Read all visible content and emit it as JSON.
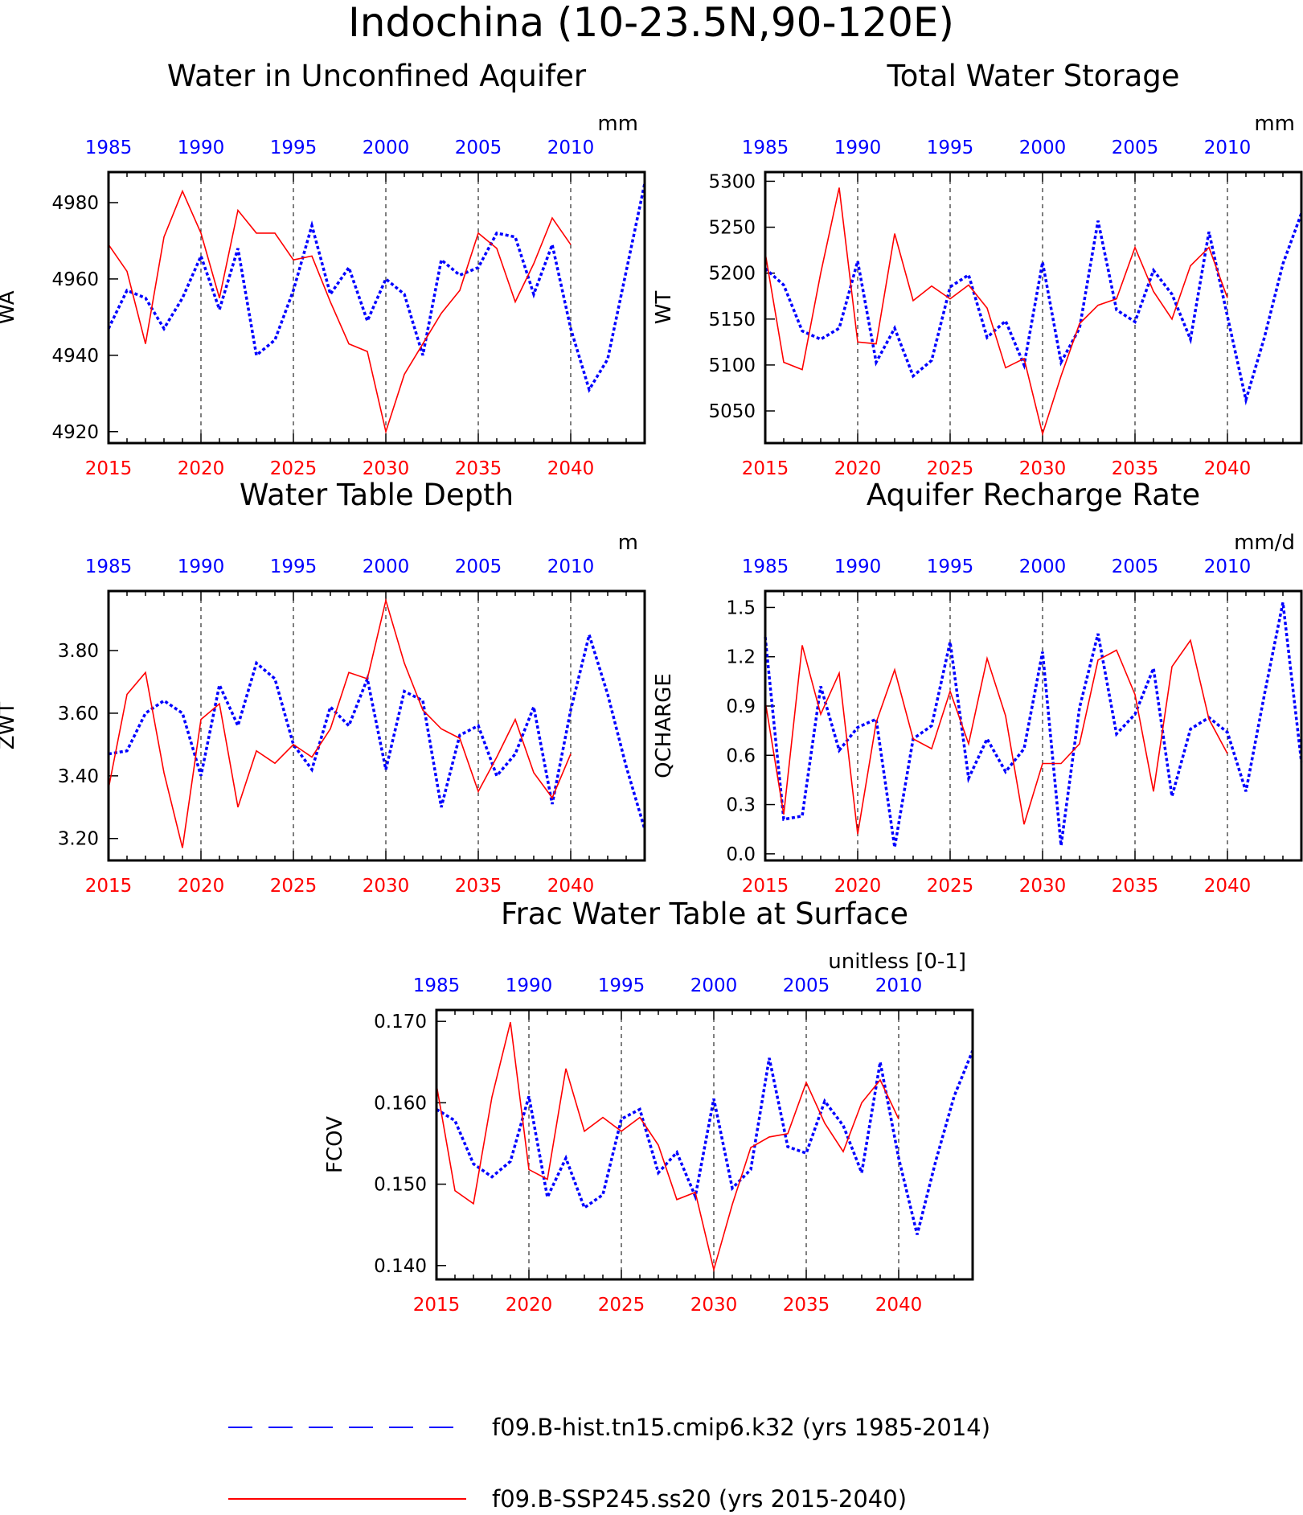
{
  "page_title": "Indochina (10-23.5N,90-120E)",
  "legend": [
    {
      "label": "f09.B-hist.tn15.cmip6.k32 (yrs 1985-2014)",
      "color": "#0000ff",
      "style": "dashed"
    },
    {
      "label": "f09.B-SSP245.ss20 (yrs 2015-2040)",
      "color": "#ff0000",
      "style": "solid"
    }
  ],
  "colors": {
    "hist": "#0000ff",
    "ssp": "#ff0000",
    "axis": "#000000"
  },
  "chart_data": [
    {
      "type": "line",
      "title": "Water in Unconfined Aquifer",
      "ylabel": "WA",
      "units": "mm",
      "x_top_ticks": [
        "1985",
        "1990",
        "1995",
        "2000",
        "2005",
        "2010"
      ],
      "x_bottom_ticks": [
        "2015",
        "2020",
        "2025",
        "2030",
        "2035",
        "2040"
      ],
      "xlim_bottom": [
        2015,
        2044
      ],
      "ylim": [
        4917,
        4988
      ],
      "yticks": [
        4920,
        4940,
        4960,
        4980
      ],
      "ytick_labels": [
        "4920",
        "4940",
        "4960",
        "4980"
      ],
      "series": [
        {
          "name": "f09.B-hist.tn15.cmip6.k32",
          "x_start": 1985,
          "values": [
            4947,
            4957,
            4955,
            4947,
            4955,
            4966,
            4952,
            4968,
            4940,
            4944,
            4957,
            4974,
            4956,
            4963,
            4949,
            4960,
            4956,
            4940,
            4965,
            4961,
            4963,
            4972,
            4971,
            4956,
            4969,
            4947,
            4931,
            4939,
            4962,
            4985
          ]
        },
        {
          "name": "f09.B-SSP245.ss20",
          "x_start": 2015,
          "values": [
            4969,
            4962,
            4943,
            4971,
            4983,
            4972,
            4955,
            4978,
            4972,
            4972,
            4965,
            4966,
            4954,
            4943,
            4941,
            4920,
            4935,
            4943,
            4951,
            4957,
            4972,
            4968,
            4954,
            4964,
            4976,
            4969
          ]
        }
      ]
    },
    {
      "type": "line",
      "title": "Total Water Storage",
      "ylabel": "WT",
      "units": "mm",
      "x_top_ticks": [
        "1985",
        "1990",
        "1995",
        "2000",
        "2005",
        "2010"
      ],
      "x_bottom_ticks": [
        "2015",
        "2020",
        "2025",
        "2030",
        "2035",
        "2040"
      ],
      "xlim_bottom": [
        2015,
        2044
      ],
      "ylim": [
        5015,
        5310
      ],
      "yticks": [
        5050,
        5100,
        5150,
        5200,
        5250,
        5300
      ],
      "ytick_labels": [
        "5050",
        "5100",
        "5150",
        "5200",
        "5250",
        "5300"
      ],
      "series": [
        {
          "name": "f09.B-hist.tn15.cmip6.k32",
          "x_start": 1985,
          "values": [
            5205,
            5187,
            5137,
            5128,
            5140,
            5213,
            5103,
            5140,
            5088,
            5105,
            5185,
            5198,
            5130,
            5148,
            5100,
            5212,
            5103,
            5140,
            5257,
            5160,
            5147,
            5203,
            5177,
            5128,
            5245,
            5153,
            5062,
            5130,
            5210,
            5265
          ]
        },
        {
          "name": "f09.B-SSP245.ss20",
          "x_start": 2015,
          "values": [
            5222,
            5103,
            5095,
            5200,
            5293,
            5125,
            5123,
            5243,
            5170,
            5186,
            5172,
            5187,
            5162,
            5097,
            5107,
            5025,
            5088,
            5145,
            5165,
            5172,
            5228,
            5180,
            5150,
            5208,
            5228,
            5173
          ]
        }
      ]
    },
    {
      "type": "line",
      "title": "Water Table Depth",
      "ylabel": "ZWT",
      "units": "m",
      "x_top_ticks": [
        "1985",
        "1990",
        "1995",
        "2000",
        "2005",
        "2010"
      ],
      "x_bottom_ticks": [
        "2015",
        "2020",
        "2025",
        "2030",
        "2035",
        "2040"
      ],
      "xlim_bottom": [
        2015,
        2044
      ],
      "ylim": [
        3.13,
        3.99
      ],
      "yticks": [
        3.2,
        3.4,
        3.6,
        3.8
      ],
      "ytick_labels": [
        "3.20",
        "3.40",
        "3.60",
        "3.80"
      ],
      "series": [
        {
          "name": "f09.B-hist.tn15.cmip6.k32",
          "x_start": 1985,
          "values": [
            3.47,
            3.48,
            3.6,
            3.64,
            3.6,
            3.4,
            3.69,
            3.56,
            3.76,
            3.71,
            3.5,
            3.42,
            3.62,
            3.56,
            3.71,
            3.42,
            3.67,
            3.64,
            3.3,
            3.53,
            3.56,
            3.4,
            3.47,
            3.62,
            3.31,
            3.61,
            3.85,
            3.66,
            3.43,
            3.23
          ]
        },
        {
          "name": "f09.B-SSP245.ss20",
          "x_start": 2015,
          "values": [
            3.36,
            3.66,
            3.73,
            3.41,
            3.17,
            3.58,
            3.63,
            3.3,
            3.48,
            3.44,
            3.5,
            3.46,
            3.55,
            3.73,
            3.71,
            3.96,
            3.76,
            3.61,
            3.55,
            3.52,
            3.35,
            3.46,
            3.58,
            3.41,
            3.33,
            3.47
          ]
        }
      ]
    },
    {
      "type": "line",
      "title": "Aquifer Recharge Rate",
      "ylabel": "QCHARGE",
      "units": "mm/d",
      "x_top_ticks": [
        "1985",
        "1990",
        "1995",
        "2000",
        "2005",
        "2010"
      ],
      "x_bottom_ticks": [
        "2015",
        "2020",
        "2025",
        "2030",
        "2035",
        "2040"
      ],
      "xlim_bottom": [
        2015,
        2044
      ],
      "ylim": [
        -0.04,
        1.6
      ],
      "yticks": [
        0.0,
        0.3,
        0.6,
        0.9,
        1.2,
        1.5
      ],
      "ytick_labels": [
        "0.0",
        "0.3",
        "0.6",
        "0.9",
        "1.2",
        "1.5"
      ],
      "series": [
        {
          "name": "f09.B-hist.tn15.cmip6.k32",
          "x_start": 1985,
          "values": [
            1.32,
            0.21,
            0.23,
            1.02,
            0.63,
            0.77,
            0.82,
            0.04,
            0.7,
            0.78,
            1.29,
            0.46,
            0.7,
            0.5,
            0.64,
            1.23,
            0.05,
            0.89,
            1.34,
            0.73,
            0.85,
            1.13,
            0.35,
            0.76,
            0.83,
            0.74,
            0.38,
            0.97,
            1.53,
            0.56
          ]
        },
        {
          "name": "f09.B-SSP245.ss20",
          "x_start": 2015,
          "values": [
            0.93,
            0.24,
            1.27,
            0.85,
            1.1,
            0.12,
            0.8,
            1.12,
            0.7,
            0.64,
            0.99,
            0.67,
            1.19,
            0.84,
            0.18,
            0.55,
            0.55,
            0.67,
            1.18,
            1.24,
            0.97,
            0.38,
            1.14,
            1.3,
            0.82,
            0.61
          ]
        }
      ]
    },
    {
      "type": "line",
      "title": "Frac Water Table at Surface",
      "ylabel": "FCOV",
      "units": "unitless [0-1]",
      "x_top_ticks": [
        "1985",
        "1990",
        "1995",
        "2000",
        "2005",
        "2010"
      ],
      "x_bottom_ticks": [
        "2015",
        "2020",
        "2025",
        "2030",
        "2035",
        "2040"
      ],
      "xlim_bottom": [
        2015,
        2044
      ],
      "ylim": [
        0.1383,
        0.1714
      ],
      "yticks": [
        0.14,
        0.15,
        0.16,
        0.17
      ],
      "ytick_labels": [
        "0.140",
        "0.150",
        "0.160",
        "0.170"
      ],
      "series": [
        {
          "name": "f09.B-hist.tn15.cmip6.k32",
          "x_start": 1985,
          "values": [
            0.1592,
            0.1578,
            0.1525,
            0.1509,
            0.1528,
            0.1608,
            0.1484,
            0.1532,
            0.1471,
            0.1487,
            0.158,
            0.1592,
            0.1514,
            0.1539,
            0.1485,
            0.1605,
            0.1495,
            0.1518,
            0.1655,
            0.1546,
            0.1538,
            0.1602,
            0.1572,
            0.1514,
            0.165,
            0.1532,
            0.1438,
            0.1528,
            0.1608,
            0.1664
          ]
        },
        {
          "name": "f09.B-SSP245.ss20",
          "x_start": 2015,
          "values": [
            0.1622,
            0.1492,
            0.1476,
            0.1607,
            0.1699,
            0.1518,
            0.1506,
            0.1642,
            0.1565,
            0.1582,
            0.1565,
            0.1582,
            0.1548,
            0.1481,
            0.149,
            0.1395,
            0.1475,
            0.1545,
            0.1558,
            0.1562,
            0.1625,
            0.1575,
            0.154,
            0.16,
            0.1628,
            0.158
          ]
        }
      ]
    }
  ]
}
